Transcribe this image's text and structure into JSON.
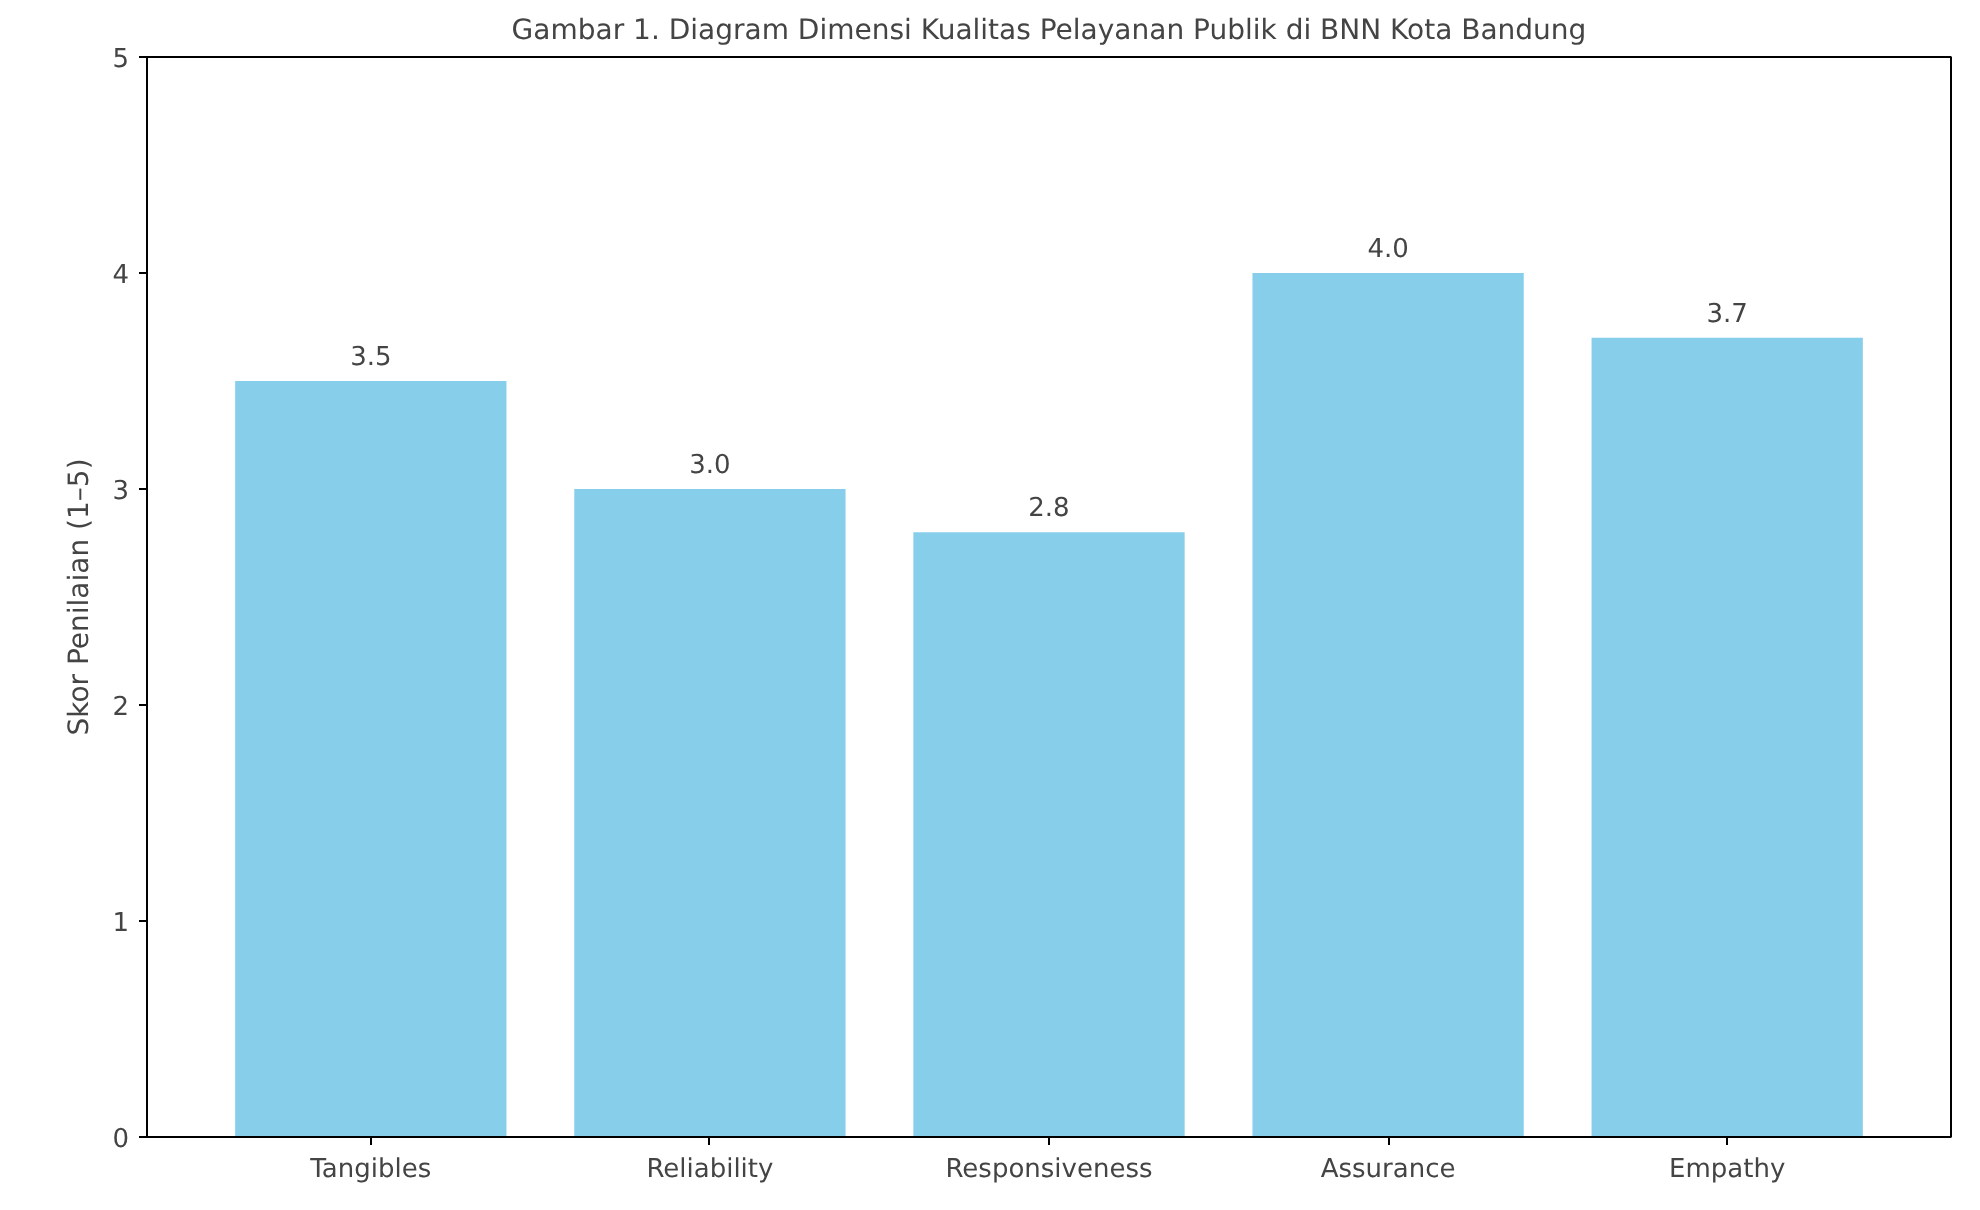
{
  "chart_data": {
    "type": "bar",
    "title": "Gambar 1. Diagram Dimensi Kualitas Pelayanan Publik di BNN Kota Bandung",
    "ylabel": "Skor Penilaian (1–5)",
    "categories": [
      "Tangibles",
      "Reliability",
      "Responsiveness",
      "Assurance",
      "Empathy"
    ],
    "values": [
      3.5,
      3.0,
      2.8,
      4.0,
      3.7
    ],
    "color": "#87ceeb",
    "ylim": [
      0,
      5
    ],
    "yticks": [
      0,
      1,
      2,
      3,
      4,
      5
    ],
    "grid": false,
    "value_labels": [
      "3.5",
      "3.0",
      "2.8",
      "4.0",
      "3.7"
    ]
  }
}
